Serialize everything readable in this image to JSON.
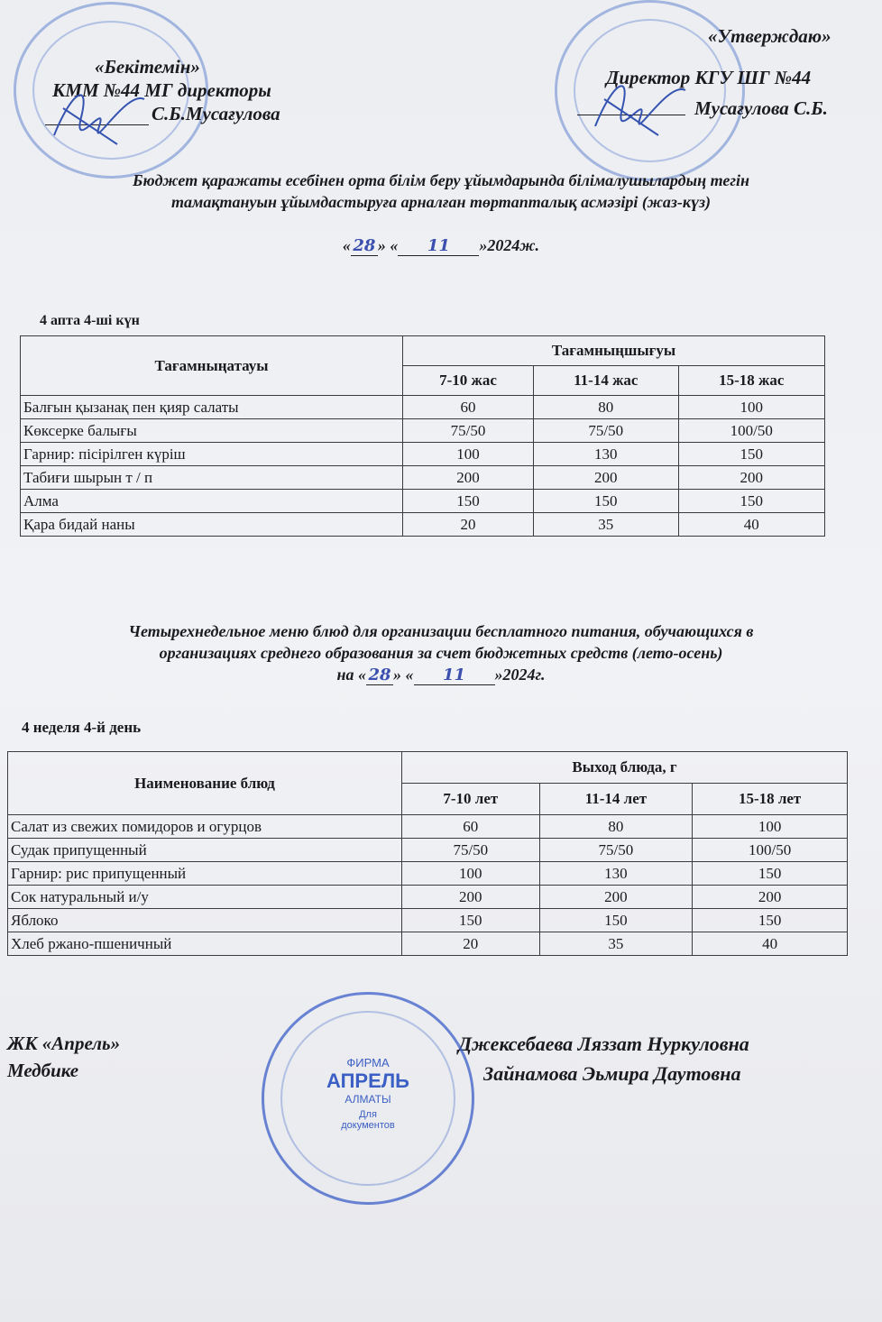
{
  "approval_kz": {
    "line1": "«Бекітемін»",
    "line2": "КММ  №44 МГ директоры",
    "line3": "С.Б.Мусағулова"
  },
  "approval_ru": {
    "line1": "«Утверждаю»",
    "line2": "Директор КГУ ШГ №44",
    "line3": "Мусағулова С.Б."
  },
  "kz": {
    "title1": "Бюджет қаражаты есебінен орта білім беру ұйымдарында білімалушылардың тегін",
    "title2": "тамақтануын ұйымдастыруға арналған төртапталық асмәзірі (жаз-күз)",
    "date_prefix": "«",
    "day": "28",
    "mid": "» «",
    "month": "11",
    "date_suffix": "»2024ж.",
    "week_label": "4 апта 4-ші күн",
    "table": {
      "name_header": "Тағамныңатауы",
      "yield_header": "Тағамныңшығуы",
      "ages": [
        "7-10 жас",
        "11-14 жас",
        "15-18 жас"
      ],
      "rows": [
        {
          "name": "Балғын қызанақ пен қияр салаты",
          "v": [
            "60",
            "80",
            "100"
          ]
        },
        {
          "name": "Көксерке балығы",
          "v": [
            "75/50",
            "75/50",
            "100/50"
          ]
        },
        {
          "name": "Гарнир: пісірілген күріш",
          "v": [
            "100",
            "130",
            "150"
          ]
        },
        {
          "name": "Табиғи шырын т / п",
          "v": [
            "200",
            "200",
            "200"
          ]
        },
        {
          "name": "Алма",
          "v": [
            "150",
            "150",
            "150"
          ]
        },
        {
          "name": "Қара бидай наны",
          "v": [
            "20",
            "35",
            "40"
          ]
        }
      ]
    }
  },
  "ru": {
    "title1": "Четырехнедельное меню блюд для организации бесплатного питания, обучающихся в",
    "title2": "организациях среднего образования за счет бюджетных средств (лето-осень)",
    "date_prefix": "на «",
    "day": "28",
    "mid": "» «",
    "month": "11",
    "date_suffix": "»2024г.",
    "week_label": "4 неделя 4-й день",
    "table": {
      "name_header": "Наименование блюд",
      "yield_header": "Выход блюда, г",
      "ages": [
        "7-10 лет",
        "11-14 лет",
        "15-18 лет"
      ],
      "rows": [
        {
          "name": "Салат из свежих помидоров и огурцов",
          "v": [
            "60",
            "80",
            "100"
          ]
        },
        {
          "name": "Судак припущенный",
          "v": [
            "75/50",
            "75/50",
            "100/50"
          ]
        },
        {
          "name": "Гарнир: рис припущенный",
          "v": [
            "100",
            "130",
            "150"
          ]
        },
        {
          "name": "Сок натуральный и/у",
          "v": [
            "200",
            "200",
            "200"
          ]
        },
        {
          "name": "Яблоко",
          "v": [
            "150",
            "150",
            "150"
          ]
        },
        {
          "name": "Хлеб ржано-пшеничный",
          "v": [
            "20",
            "35",
            "40"
          ]
        }
      ]
    }
  },
  "footer": {
    "org": "ЖК «Апрель»",
    "role": "Медбике",
    "person1": "Джексебаева Ляззат Нуркуловна",
    "person2": "Зайнамова Эьмира Даутовна"
  },
  "stamp_text": {
    "firm": "ФИРМА",
    "name": "АПРЕЛЬ",
    "city": "АЛМАТЫ",
    "purpose": "Для документов"
  },
  "colors": {
    "stamp": "#4a6fc8",
    "ink": "#1b1b1f"
  }
}
